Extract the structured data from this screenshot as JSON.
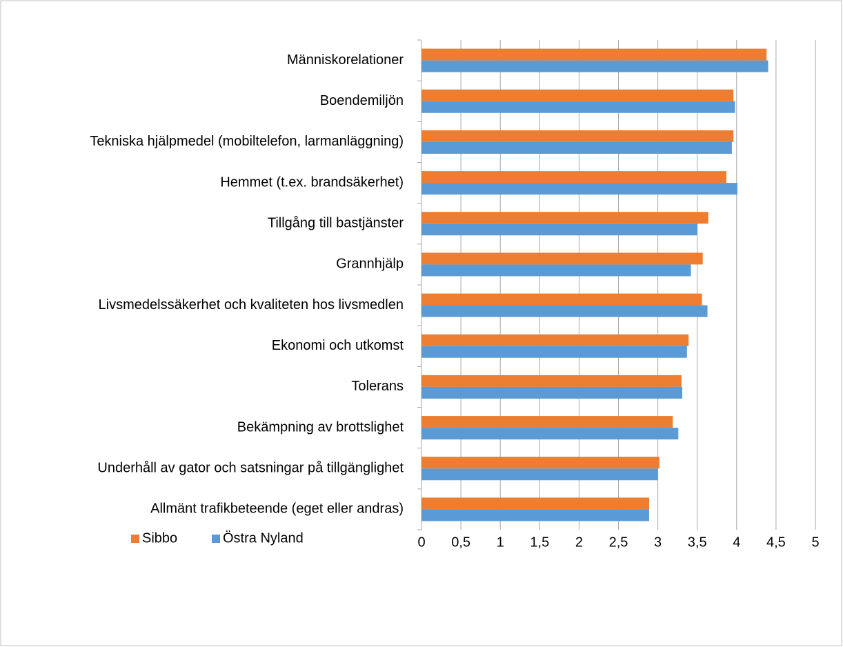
{
  "chart_data": {
    "type": "bar",
    "orientation": "horizontal",
    "categories": [
      "Människorelationer",
      "Boendemiljön",
      "Tekniska hjälpmedel (mobiltelefon, larmanläggning)",
      "Hemmet (t.ex. brandsäkerhet)",
      "Tillgång till bastjänster",
      "Grannhjälp",
      "Livsmedelssäkerhet och kvaliteten hos livsmedlen",
      "Ekonomi och utkomst",
      "Tolerans",
      "Bekämpning av brottslighet",
      "Underhåll av gator och satsningar på tillgänglighet",
      "Allmänt trafikbeteende (eget eller andras)"
    ],
    "series": [
      {
        "name": "Sibbo",
        "color": "#ed7d31",
        "values": [
          4.38,
          3.96,
          3.96,
          3.87,
          3.64,
          3.57,
          3.56,
          3.39,
          3.3,
          3.19,
          3.02,
          2.89
        ]
      },
      {
        "name": "Östra Nyland",
        "color": "#5b9bd5",
        "values": [
          4.4,
          3.98,
          3.94,
          4.01,
          3.5,
          3.42,
          3.63,
          3.37,
          3.31,
          3.26,
          3.0,
          2.89
        ]
      }
    ],
    "xlim": [
      0,
      5
    ],
    "xticks": [
      0,
      {
        "value": 0.5,
        "label": "0,5"
      },
      1,
      {
        "value": 1.5,
        "label": "1,5"
      },
      2,
      {
        "value": 2.5,
        "label": "2,5"
      },
      3,
      {
        "value": 3.5,
        "label": "3,5"
      },
      4,
      {
        "value": 4.5,
        "label": "4,5"
      },
      5
    ],
    "grid": true,
    "legend": "bottom-left"
  }
}
